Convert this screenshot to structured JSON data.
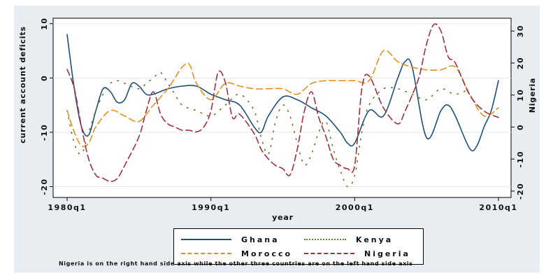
{
  "chart_data": {
    "type": "line",
    "xlabel": "year",
    "x_ticks": [
      "1980q1",
      "1990q1",
      "2000q1",
      "2010q1"
    ],
    "x_tick_values": [
      1980,
      1990,
      2000,
      2010
    ],
    "xlim": [
      1980,
      2010
    ],
    "left_axis": {
      "label": "current account deficits",
      "ticks": [
        "10",
        "0",
        "-10",
        "-20"
      ],
      "tick_values": [
        10,
        0,
        -10,
        -20
      ],
      "ylim": [
        -22,
        11
      ]
    },
    "right_axis": {
      "label": "Nigeria",
      "ticks": [
        "30",
        "20",
        "10",
        "0",
        "-10",
        "-20"
      ],
      "tick_values": [
        30,
        20,
        10,
        0,
        -10,
        -20
      ],
      "ylim": [
        -22,
        34
      ]
    },
    "series": [
      {
        "name": "Ghana",
        "axis": "left",
        "color": "#1f4e79",
        "dash": "solid",
        "x": [
          1980.0,
          1980.5,
          1981.0,
          1981.5,
          1982.0,
          1982.5,
          1983.0,
          1983.5,
          1984.0,
          1984.5,
          1985.0,
          1985.5,
          1986.0,
          1987.0,
          1988.0,
          1989.0,
          1990.0,
          1991.0,
          1992.0,
          1993.0,
          1993.5,
          1994.0,
          1995.0,
          1996.0,
          1997.0,
          1998.0,
          1999.0,
          1999.5,
          2000.0,
          2001.0,
          2002.0,
          2003.0,
          2003.5,
          2004.0,
          2005.0,
          2006.0,
          2006.5,
          2007.0,
          2008.0,
          2008.5,
          2009.0,
          2009.5,
          2010.0
        ],
        "y": [
          8,
          -2,
          -9,
          -10.5,
          -6,
          -2,
          -2.5,
          -4.5,
          -4,
          -1,
          -1.5,
          -3,
          -3,
          -2,
          -1.5,
          -1.5,
          -3,
          -4,
          -5,
          -9,
          -10,
          -7,
          -3.5,
          -4,
          -5.5,
          -7,
          -10,
          -12,
          -12,
          -6,
          -7,
          0,
          3,
          2,
          -11,
          -6,
          -5,
          -7,
          -13,
          -12.5,
          -9,
          -6,
          -0.5
        ]
      },
      {
        "name": "Kenya",
        "axis": "left",
        "color": "#5a7d2a",
        "dash": "dotted",
        "x": [
          1980.0,
          1980.5,
          1981.0,
          1981.5,
          1982.0,
          1982.5,
          1983.0,
          1983.5,
          1984.0,
          1985.0,
          1985.5,
          1986.0,
          1986.5,
          1987.0,
          1987.5,
          1988.0,
          1989.0,
          1990.0,
          1991.0,
          1992.0,
          1993.0,
          1993.5,
          1994.0,
          1994.5,
          1995.0,
          1995.5,
          1996.0,
          1996.5,
          1997.0,
          1997.5,
          1998.0,
          1998.5,
          1999.0,
          1999.5,
          2000.0,
          2000.5,
          2001.0,
          2002.0,
          2003.0,
          2004.0,
          2005.0,
          2006.0,
          2007.0,
          2008.0
        ],
        "y": [
          -6,
          -12,
          -14,
          -10,
          -6,
          -3,
          -1,
          -0.5,
          -1,
          -2,
          -1,
          0,
          1,
          -1,
          -3,
          -5,
          -6,
          -7,
          -5,
          -3,
          -6,
          -11,
          -14,
          -8,
          -5,
          -7,
          -12,
          -16,
          -14,
          -10,
          -8,
          -13,
          -17,
          -20,
          -18,
          -10,
          -5,
          -2,
          -2,
          -3,
          -4,
          -2,
          -3,
          -2
        ]
      },
      {
        "name": "Morocco",
        "axis": "left",
        "color": "#e8901e",
        "dash": "dash",
        "x": [
          1980.0,
          1980.5,
          1981.0,
          1981.5,
          1982.0,
          1983.0,
          1984.0,
          1985.0,
          1986.0,
          1987.0,
          1987.5,
          1988.0,
          1988.5,
          1989.0,
          1990.0,
          1991.0,
          1992.0,
          1993.0,
          1994.0,
          1995.0,
          1996.0,
          1997.0,
          1998.0,
          1999.0,
          2000.0,
          2001.0,
          2002.0,
          2003.0,
          2004.0,
          2005.0,
          2006.0,
          2007.0,
          2008.0,
          2009.0,
          2010.0
        ],
        "y": [
          -6,
          -10,
          -12.5,
          -12,
          -9,
          -6,
          -7,
          -8,
          -5,
          -2,
          0,
          2,
          2.5,
          -1,
          -4,
          -1,
          -1.5,
          -2,
          -2,
          -2,
          -3,
          -1,
          -0.5,
          -0.5,
          -0.5,
          -0.5,
          5,
          3,
          2,
          1.5,
          1.5,
          2,
          -3,
          -7,
          -5.5
        ]
      },
      {
        "name": "Nigeria",
        "axis": "right",
        "color": "#a03040",
        "dash": "dash",
        "x": [
          1980.0,
          1980.5,
          1981.0,
          1981.5,
          1982.0,
          1982.5,
          1983.0,
          1983.5,
          1984.0,
          1985.0,
          1985.5,
          1986.0,
          1986.5,
          1987.0,
          1987.5,
          1988.0,
          1988.5,
          1989.0,
          1989.5,
          1990.0,
          1990.5,
          1991.0,
          1991.5,
          1992.0,
          1993.0,
          1993.5,
          1994.0,
          1994.5,
          1995.0,
          1995.5,
          1996.0,
          1996.5,
          1997.0,
          1997.5,
          1998.0,
          1998.5,
          1999.0,
          1999.5,
          2000.0,
          2000.5,
          2001.0,
          2002.0,
          2003.0,
          2003.5,
          2004.0,
          2004.5,
          2005.0,
          2005.5,
          2006.0,
          2006.5,
          2007.0,
          2008.0,
          2009.0,
          2010.0
        ],
        "y": [
          18,
          12,
          0,
          -10,
          -15,
          -16,
          -17,
          -16,
          -12,
          -3,
          5,
          11,
          4,
          1,
          0,
          -1,
          -1,
          -1.5,
          0,
          5,
          17,
          14,
          3,
          4,
          -2,
          -7,
          -10,
          -12,
          -13,
          -15,
          -7,
          5,
          11,
          3,
          -3,
          -10,
          -12,
          -13,
          -12,
          12,
          16,
          6,
          1,
          5,
          10,
          16,
          26,
          32,
          30,
          22,
          20,
          10,
          5,
          3
        ]
      }
    ],
    "legend_placement": "bottom",
    "annotation": "Nigeria is on the right hand side axis while the other three countries are on the left hand side axis"
  }
}
